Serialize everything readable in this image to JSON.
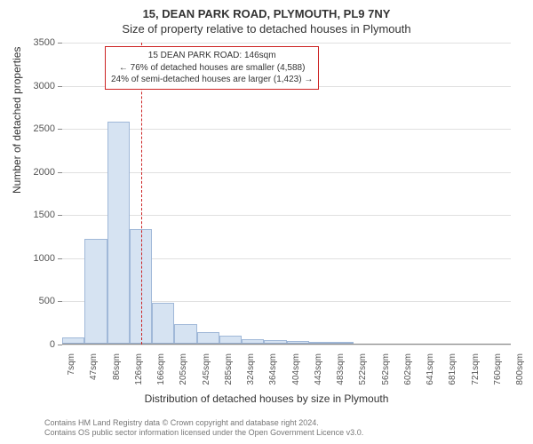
{
  "header": {
    "title_main": "15, DEAN PARK ROAD, PLYMOUTH, PL9 7NY",
    "title_sub": "Size of property relative to detached houses in Plymouth"
  },
  "chart": {
    "type": "histogram",
    "ylabel": "Number of detached properties",
    "xlabel": "Distribution of detached houses by size in Plymouth",
    "ylim": [
      0,
      3500
    ],
    "ytick_step": 500,
    "yticks": [
      0,
      500,
      1000,
      1500,
      2000,
      2500,
      3000,
      3500
    ],
    "xticks": [
      "7sqm",
      "47sqm",
      "86sqm",
      "126sqm",
      "166sqm",
      "205sqm",
      "245sqm",
      "285sqm",
      "324sqm",
      "364sqm",
      "404sqm",
      "443sqm",
      "483sqm",
      "522sqm",
      "562sqm",
      "602sqm",
      "641sqm",
      "681sqm",
      "721sqm",
      "760sqm",
      "800sqm"
    ],
    "bars": [
      70,
      1220,
      2570,
      1330,
      470,
      230,
      130,
      95,
      55,
      45,
      32,
      25,
      22,
      0,
      0,
      0,
      0,
      0,
      0,
      0
    ],
    "bar_color": "#d6e3f2",
    "bar_border_color": "#a0b8d8",
    "grid_color": "#e0e0e0",
    "axis_color": "#888888",
    "background_color": "#ffffff",
    "label_fontsize": 12,
    "tick_fontsize": 11,
    "marker": {
      "value_sqm": 146,
      "color": "#cc2222",
      "line_style": "dashed"
    },
    "annotation": {
      "line1": "15 DEAN PARK ROAD: 146sqm",
      "line2": "← 76% of detached houses are smaller (4,588)",
      "line3": "24% of semi-detached houses are larger (1,423) →",
      "border_color": "#cc2222",
      "background_color": "#ffffff",
      "fontsize": 10
    }
  },
  "footer": {
    "line1": "Contains HM Land Registry data © Crown copyright and database right 2024.",
    "line2": "Contains OS public sector information licensed under the Open Government Licence v3.0."
  }
}
